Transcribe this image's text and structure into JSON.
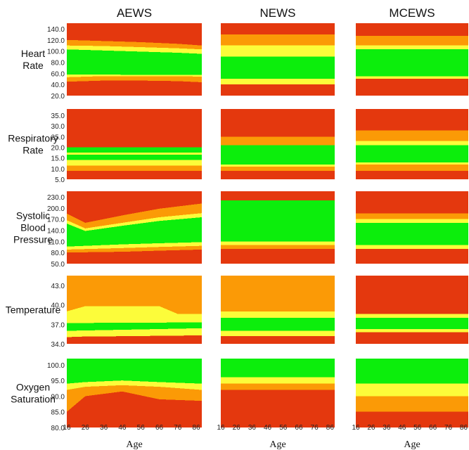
{
  "colors": {
    "red": "#e4380e",
    "orange": "#fb9a06",
    "yellow": "#fcfc3a",
    "green": "#0cee0c"
  },
  "chart_data": {
    "type": "heatmap",
    "columns": [
      "AEWS",
      "NEWS",
      "MCEWS"
    ],
    "x": {
      "label": "Age",
      "ticks": [
        16,
        26,
        36,
        46,
        56,
        66,
        76,
        86
      ],
      "range": [
        16,
        89
      ]
    },
    "rows": [
      {
        "key": "heart_rate",
        "label_lines": [
          "Heart",
          "Rate"
        ],
        "ylim": [
          20,
          150
        ],
        "yticks": [
          "140.0",
          "120.0",
          "100.0",
          "80.0",
          "60.0",
          "40.0",
          "20.0"
        ],
        "panels": {
          "AEWS": [
            [
              "red",
              [
                16,
                20
              ],
              [
                36,
                20
              ],
              [
                56,
                20
              ],
              [
                76,
                20
              ],
              [
                89,
                20
              ]
            ],
            [
              "orange",
              [
                16,
                45
              ],
              [
                36,
                47
              ],
              [
                56,
                47
              ],
              [
                76,
                46
              ],
              [
                89,
                44
              ]
            ],
            [
              "yellow",
              [
                16,
                53
              ],
              [
                36,
                55
              ],
              [
                56,
                55
              ],
              [
                76,
                55
              ],
              [
                89,
                54
              ]
            ],
            [
              "green",
              [
                16,
                58
              ],
              [
                36,
                58
              ],
              [
                56,
                57
              ],
              [
                76,
                57
              ],
              [
                89,
                57
              ]
            ],
            [
              "yellow",
              [
                16,
                103
              ],
              [
                36,
                101
              ],
              [
                56,
                99
              ],
              [
                76,
                97
              ],
              [
                89,
                95
              ]
            ],
            [
              "orange",
              [
                16,
                110
              ],
              [
                36,
                109
              ],
              [
                56,
                107
              ],
              [
                76,
                105
              ],
              [
                89,
                103
              ]
            ],
            [
              "red",
              [
                16,
                120
              ],
              [
                36,
                118
              ],
              [
                56,
                116
              ],
              [
                76,
                113
              ],
              [
                89,
                110
              ]
            ]
          ],
          "NEWS": [
            [
              "red",
              [
                16,
                20
              ]
            ],
            [
              "yellow",
              [
                16,
                40
              ]
            ],
            [
              "green",
              [
                16,
                50
              ]
            ],
            [
              "yellow",
              [
                16,
                90
              ]
            ],
            [
              "orange",
              [
                16,
                110
              ]
            ],
            [
              "red",
              [
                16,
                130
              ]
            ]
          ],
          "MCEWS": [
            [
              "red",
              [
                16,
                20
              ]
            ],
            [
              "yellow",
              [
                16,
                50
              ]
            ],
            [
              "green",
              [
                16,
                55
              ]
            ],
            [
              "yellow",
              [
                16,
                103
              ]
            ],
            [
              "orange",
              [
                16,
                110
              ]
            ],
            [
              "red",
              [
                16,
                127
              ]
            ]
          ]
        }
      },
      {
        "key": "respiratory_rate",
        "label_lines": [
          "Respiratory",
          "Rate"
        ],
        "ylim": [
          5,
          38
        ],
        "yticks": [
          "35.0",
          "30.0",
          "25.0",
          "20.0",
          "15.0",
          "10.0",
          "5.0"
        ],
        "panels": {
          "AEWS": [
            [
              "red",
              [
                16,
                5
              ]
            ],
            [
              "orange",
              [
                16,
                9
              ]
            ],
            [
              "yellow",
              [
                16,
                11.5
              ]
            ],
            [
              "green",
              [
                16,
                14
              ]
            ],
            [
              "yellow",
              [
                16,
                16.5
              ]
            ],
            [
              "green",
              [
                16,
                17.5
              ]
            ],
            [
              "red",
              [
                16,
                20
              ]
            ]
          ],
          "NEWS": [
            [
              "red",
              [
                16,
                5
              ]
            ],
            [
              "orange",
              [
                16,
                9
              ]
            ],
            [
              "yellow",
              [
                16,
                11
              ]
            ],
            [
              "green",
              [
                16,
                12
              ]
            ],
            [
              "orange",
              [
                16,
                21
              ]
            ],
            [
              "red",
              [
                16,
                25
              ]
            ]
          ],
          "MCEWS": [
            [
              "red",
              [
                16,
                5
              ]
            ],
            [
              "orange",
              [
                16,
                9
              ]
            ],
            [
              "yellow",
              [
                16,
                12
              ]
            ],
            [
              "green",
              [
                16,
                13
              ]
            ],
            [
              "yellow",
              [
                16,
                21
              ]
            ],
            [
              "orange",
              [
                16,
                23
              ]
            ],
            [
              "red",
              [
                16,
                28
              ]
            ]
          ]
        }
      },
      {
        "key": "systolic_bp",
        "label_lines": [
          "Systolic",
          "Blood",
          "Pressure"
        ],
        "ylim": [
          50,
          245
        ],
        "yticks": [
          "230.0",
          "200.0",
          "170.0",
          "140.0",
          "110.0",
          "80.0",
          "50.0"
        ],
        "panels": {
          "AEWS": [
            [
              "red",
              [
                16,
                50
              ]
            ],
            [
              "orange",
              [
                16,
                80
              ],
              [
                46,
                82
              ],
              [
                66,
                85
              ],
              [
                89,
                88
              ]
            ],
            [
              "yellow",
              [
                16,
                88
              ],
              [
                46,
                92
              ],
              [
                66,
                95
              ],
              [
                89,
                98
              ]
            ],
            [
              "green",
              [
                16,
                96
              ],
              [
                46,
                102
              ],
              [
                66,
                105
              ],
              [
                89,
                108
              ]
            ],
            [
              "yellow",
              [
                16,
                158
              ],
              [
                26,
                138
              ],
              [
                46,
                152
              ],
              [
                66,
                165
              ],
              [
                89,
                175
              ]
            ],
            [
              "orange",
              [
                16,
                167
              ],
              [
                26,
                145
              ],
              [
                46,
                160
              ],
              [
                66,
                175
              ],
              [
                89,
                186
              ]
            ],
            [
              "red",
              [
                16,
                185
              ],
              [
                26,
                160
              ],
              [
                46,
                180
              ],
              [
                66,
                198
              ],
              [
                89,
                212
              ]
            ]
          ],
          "NEWS": [
            [
              "red",
              [
                16,
                50
              ]
            ],
            [
              "orange",
              [
                16,
                90
              ]
            ],
            [
              "yellow",
              [
                16,
                100
              ]
            ],
            [
              "green",
              [
                16,
                110
              ]
            ],
            [
              "red",
              [
                16,
                220
              ]
            ]
          ],
          "MCEWS": [
            [
              "red",
              [
                16,
                50
              ]
            ],
            [
              "yellow",
              [
                16,
                90
              ]
            ],
            [
              "green",
              [
                16,
                100
              ]
            ],
            [
              "yellow",
              [
                16,
                160
              ]
            ],
            [
              "orange",
              [
                16,
                170
              ]
            ],
            [
              "red",
              [
                16,
                185
              ]
            ]
          ]
        }
      },
      {
        "key": "temperature",
        "label_lines": [
          "Temperature"
        ],
        "ylim": [
          34,
          44.5
        ],
        "yticks": [
          "43.0",
          "40.0",
          "37.0",
          "34.0"
        ],
        "panels": {
          "AEWS": [
            [
              "red",
              [
                16,
                34
              ]
            ],
            [
              "yellow",
              [
                16,
                35
              ],
              [
                21,
                35.1
              ],
              [
                89,
                35.3
              ]
            ],
            [
              "green",
              [
                16,
                36
              ],
              [
                89,
                36.4
              ]
            ],
            [
              "yellow",
              [
                16,
                37.2
              ],
              [
                89,
                37.3
              ]
            ],
            [
              "orange",
              [
                16,
                39
              ],
              [
                26,
                39.8
              ],
              [
                66,
                39.8
              ],
              [
                76,
                38.6
              ],
              [
                89,
                38.6
              ]
            ]
          ],
          "NEWS": [
            [
              "red",
              [
                16,
                34
              ]
            ],
            [
              "yellow",
              [
                16,
                35.2
              ]
            ],
            [
              "green",
              [
                16,
                36
              ]
            ],
            [
              "yellow",
              [
                16,
                38
              ]
            ],
            [
              "orange",
              [
                16,
                39
              ]
            ]
          ],
          "MCEWS": [
            [
              "red",
              [
                16,
                34
              ]
            ],
            [
              "yellow",
              [
                16,
                35.8
              ]
            ],
            [
              "green",
              [
                16,
                36.3
              ]
            ],
            [
              "yellow",
              [
                16,
                38
              ]
            ],
            [
              "red",
              [
                16,
                38.6
              ]
            ]
          ]
        }
      },
      {
        "key": "oxygen_saturation",
        "label_lines": [
          "Oxygen",
          "Saturation"
        ],
        "ylim": [
          80,
          102
        ],
        "yticks": [
          "100.0",
          "95.0",
          "90.0",
          "85.0",
          "80.0"
        ],
        "panels": {
          "AEWS": [
            [
              "red",
              [
                16,
                80
              ]
            ],
            [
              "orange",
              [
                16,
                85
              ],
              [
                26,
                90
              ],
              [
                46,
                91.5
              ],
              [
                66,
                89
              ],
              [
                89,
                88.5
              ]
            ],
            [
              "yellow",
              [
                16,
                92
              ],
              [
                26,
                93
              ],
              [
                46,
                93.5
              ],
              [
                66,
                93
              ],
              [
                89,
                92
              ]
            ],
            [
              "green",
              [
                16,
                94
              ],
              [
                26,
                94.5
              ],
              [
                46,
                95
              ],
              [
                66,
                94.5
              ],
              [
                89,
                94
              ]
            ]
          ],
          "NEWS": [
            [
              "red",
              [
                16,
                80
              ]
            ],
            [
              "orange",
              [
                16,
                92
              ]
            ],
            [
              "yellow",
              [
                16,
                94
              ]
            ],
            [
              "green",
              [
                16,
                96
              ]
            ]
          ],
          "MCEWS": [
            [
              "red",
              [
                16,
                80
              ]
            ],
            [
              "orange",
              [
                16,
                85
              ]
            ],
            [
              "yellow",
              [
                16,
                90
              ]
            ],
            [
              "green",
              [
                16,
                94
              ]
            ]
          ]
        }
      }
    ]
  }
}
